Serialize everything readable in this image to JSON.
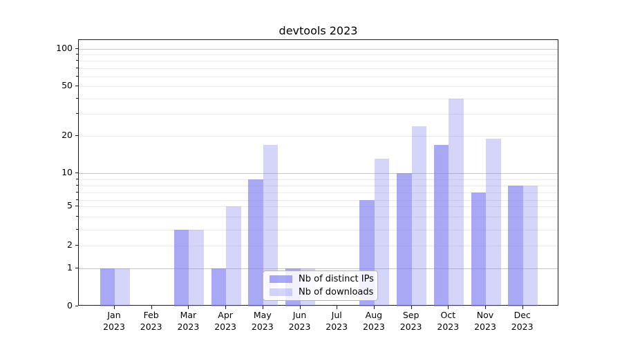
{
  "title": "devtools 2023",
  "chart_data": {
    "type": "bar",
    "title": "devtools 2023",
    "x": [
      "Jan 2023",
      "Feb 2023",
      "Mar 2023",
      "Apr 2023",
      "May 2023",
      "Jun 2023",
      "Jul 2023",
      "Aug 2023",
      "Sep 2023",
      "Oct 2023",
      "Nov 2023",
      "Dec 2023"
    ],
    "x_axis": {
      "tick_months": [
        "Jan",
        "Feb",
        "Mar",
        "Apr",
        "May",
        "Jun",
        "Jul",
        "Aug",
        "Sep",
        "Oct",
        "Nov",
        "Dec"
      ],
      "tick_year": "2023"
    },
    "series": [
      {
        "name": "Nb of distinct IPs",
        "values": [
          1,
          0,
          3,
          1,
          9,
          1,
          0,
          6,
          10,
          17,
          7,
          8
        ],
        "color": "rgba(123,123,238,0.66)"
      },
      {
        "name": "Nb of downloads",
        "values": [
          1,
          0,
          3,
          5,
          17,
          1,
          0,
          13,
          24,
          40,
          19,
          8
        ],
        "color": "rgba(123,123,238,0.32)"
      }
    ],
    "y_axis": {
      "scale": "symlog",
      "major_tick_labels": [
        "100",
        "50",
        "20",
        "10",
        "5",
        "2",
        "1",
        "0"
      ],
      "major_tick_values": [
        100,
        50,
        20,
        10,
        5,
        2,
        1,
        0
      ],
      "major_gridlines": [
        100,
        10,
        1
      ],
      "minor_gridlines": [
        90,
        80,
        70,
        60,
        50,
        40,
        30,
        20,
        9,
        8,
        7,
        6,
        5,
        4,
        3,
        2
      ],
      "ylim": [
        0,
        115
      ]
    },
    "grid": true,
    "legend_position": "lower center (inside axes)"
  },
  "colors": {
    "bar_distinct_ips": "rgba(123,123,238,0.66)",
    "bar_downloads": "rgba(123,123,238,0.32)",
    "grid_major": "#c6c6c6",
    "grid_minor": "#ebebeb",
    "axis": "#1a1a1a",
    "legend_border": "#b3b3b3"
  }
}
